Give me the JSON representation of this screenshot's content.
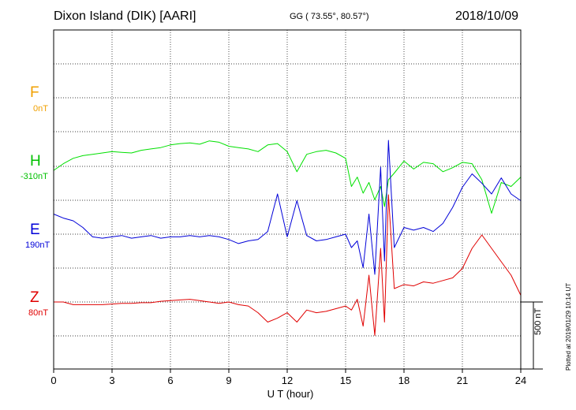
{
  "header": {
    "station": "Dixon Island (DIK)  [AARI]",
    "coords": "GG ( 73.55°,  80.57°)",
    "date": "2018/10/09"
  },
  "footer": {
    "scale_label": "500 nT",
    "plotted": "Plotted at 2019/01/29 10:14 UT"
  },
  "colors": {
    "F": "#f0a000",
    "H": "#00e000",
    "E": "#0000d8",
    "Z": "#e00000"
  },
  "chart_data": {
    "type": "line",
    "xlabel": "U T (hour)",
    "xlim": [
      0,
      24
    ],
    "xticks": [
      "0",
      "3",
      "6",
      "9",
      "12",
      "15",
      "18",
      "21",
      "24"
    ],
    "scale_nT": 500,
    "series": [
      {
        "name": "F",
        "baseline": "0nT",
        "values": []
      },
      {
        "name": "H",
        "baseline": "-310nT",
        "x": [
          0,
          0.5,
          1,
          1.5,
          2,
          2.5,
          3,
          3.5,
          4,
          4.5,
          5,
          5.5,
          6,
          6.5,
          7,
          7.5,
          8,
          8.5,
          9,
          9.5,
          10,
          10.5,
          11,
          11.5,
          12,
          12.5,
          13,
          13.5,
          14,
          14.5,
          15,
          15.3,
          15.6,
          15.9,
          16.2,
          16.5,
          16.8,
          17.0,
          17.2,
          17.5,
          18,
          18.5,
          19,
          19.5,
          20,
          20.5,
          21,
          21.5,
          22,
          22.5,
          23,
          23.5,
          24
        ],
        "values": [
          -30,
          20,
          60,
          80,
          90,
          100,
          110,
          105,
          100,
          120,
          130,
          140,
          160,
          170,
          175,
          165,
          190,
          180,
          150,
          140,
          130,
          110,
          160,
          170,
          110,
          -40,
          90,
          110,
          120,
          100,
          60,
          -150,
          -80,
          -200,
          -120,
          -250,
          -150,
          -300,
          -100,
          -50,
          40,
          -20,
          30,
          20,
          -40,
          -10,
          30,
          20,
          -100,
          -350,
          -120,
          -150,
          -80
        ]
      },
      {
        "name": "E",
        "baseline": "190nT",
        "x": [
          0,
          0.5,
          1,
          1.5,
          2,
          2.5,
          3,
          3.5,
          4,
          4.5,
          5,
          5.5,
          6,
          6.5,
          7,
          7.5,
          8,
          8.5,
          9,
          9.5,
          10,
          10.5,
          11,
          11.5,
          12,
          12.5,
          13,
          13.5,
          14,
          14.5,
          15,
          15.3,
          15.6,
          15.9,
          16.2,
          16.5,
          16.8,
          17.0,
          17.2,
          17.5,
          18,
          18.5,
          19,
          19.5,
          20,
          20.5,
          21,
          21.5,
          22,
          22.5,
          23,
          23.5,
          24
        ],
        "values": [
          150,
          120,
          100,
          50,
          -20,
          -30,
          -20,
          -10,
          -30,
          -20,
          -10,
          -30,
          -20,
          -20,
          -10,
          -20,
          -10,
          -20,
          -40,
          -70,
          -50,
          -40,
          20,
          300,
          -20,
          250,
          -10,
          -50,
          -40,
          -20,
          0,
          -100,
          -50,
          -250,
          150,
          -300,
          500,
          -200,
          700,
          -100,
          50,
          30,
          50,
          20,
          80,
          200,
          350,
          450,
          380,
          300,
          420,
          300,
          250
        ]
      },
      {
        "name": "Z",
        "baseline": "80nT",
        "x": [
          0,
          0.5,
          1,
          1.5,
          2,
          2.5,
          3,
          3.5,
          4,
          4.5,
          5,
          5.5,
          6,
          6.5,
          7,
          7.5,
          8,
          8.5,
          9,
          9.5,
          10,
          10.5,
          11,
          11.5,
          12,
          12.5,
          13,
          13.5,
          14,
          14.5,
          15,
          15.3,
          15.6,
          15.9,
          16.2,
          16.5,
          16.8,
          17.0,
          17.2,
          17.5,
          18,
          18.5,
          19,
          19.5,
          20,
          20.5,
          21,
          21.5,
          22,
          22.5,
          23,
          23.5,
          24
        ],
        "values": [
          0,
          0,
          -20,
          -20,
          -20,
          -20,
          -15,
          -10,
          -10,
          -5,
          -5,
          5,
          10,
          15,
          20,
          10,
          0,
          -10,
          0,
          -20,
          -30,
          -80,
          -150,
          -120,
          -80,
          -150,
          -60,
          -80,
          -70,
          -50,
          -30,
          -60,
          20,
          -180,
          200,
          -250,
          400,
          -150,
          800,
          100,
          130,
          120,
          150,
          140,
          160,
          180,
          250,
          400,
          500,
          400,
          300,
          200,
          50
        ]
      }
    ]
  }
}
